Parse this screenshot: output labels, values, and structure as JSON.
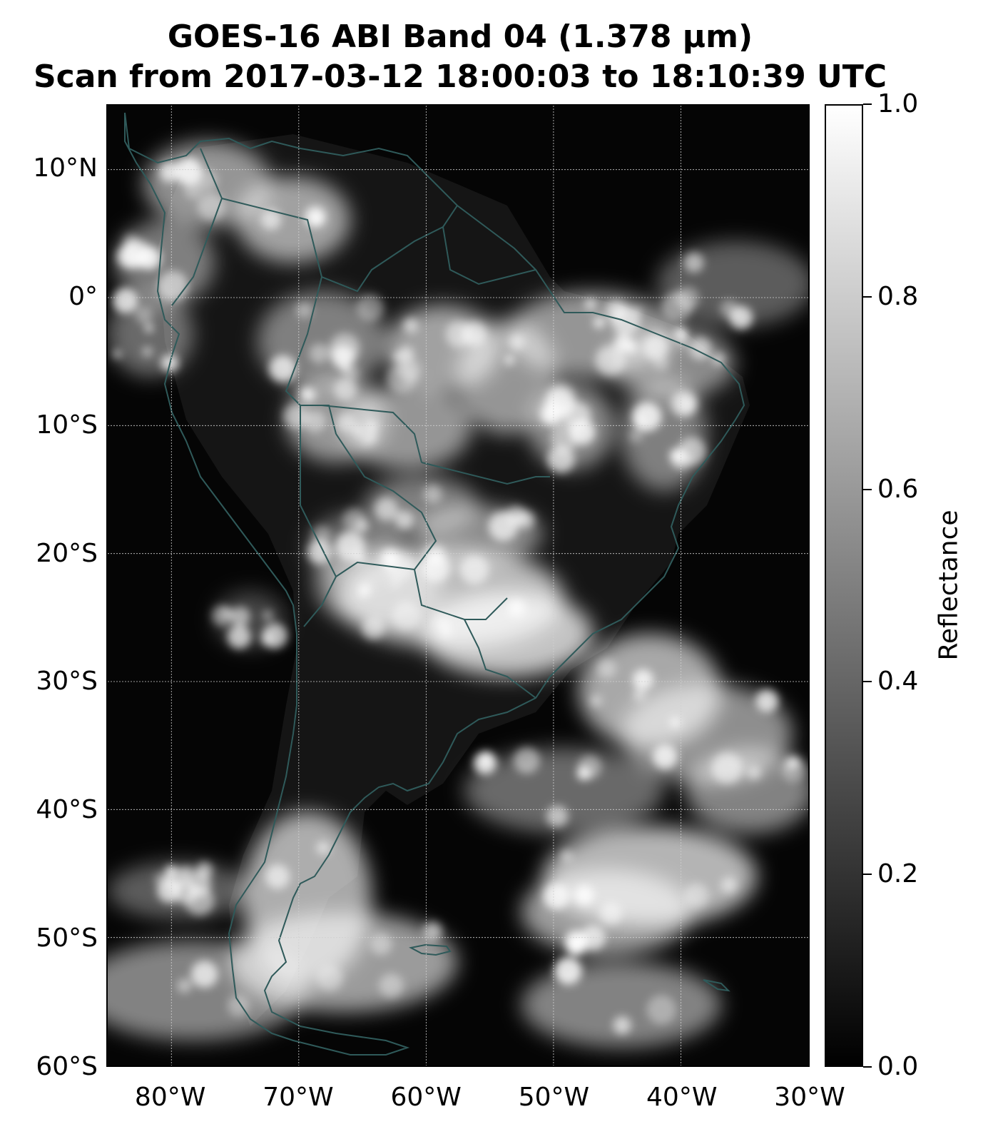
{
  "title": {
    "line1": "GOES-16 ABI Band 04 (1.378 µm)",
    "line2": "Scan from 2017-03-12 18:00:03 to 18:10:39 UTC"
  },
  "map": {
    "lon_range": [
      -85,
      -30
    ],
    "lat_range": [
      -60,
      15
    ],
    "coastline_color": "#2f5a5a",
    "gridline_color": "#d0d0d0",
    "lat_labels": [
      {
        "lat": 10,
        "text": "10°N"
      },
      {
        "lat": 0,
        "text": "0°"
      },
      {
        "lat": -10,
        "text": "10°S"
      },
      {
        "lat": -20,
        "text": "20°S"
      },
      {
        "lat": -30,
        "text": "30°S"
      },
      {
        "lat": -40,
        "text": "40°S"
      },
      {
        "lat": -50,
        "text": "50°S"
      },
      {
        "lat": -60,
        "text": "60°S"
      }
    ],
    "lon_labels": [
      {
        "lon": -80,
        "text": "80°W"
      },
      {
        "lon": -70,
        "text": "70°W"
      },
      {
        "lon": -60,
        "text": "60°W"
      },
      {
        "lon": -50,
        "text": "50°W"
      },
      {
        "lon": -40,
        "text": "40°W"
      },
      {
        "lon": -30,
        "text": "30°W"
      }
    ]
  },
  "colorbar": {
    "label": "Reflectance",
    "range": [
      0,
      1
    ],
    "colormap": [
      "#000000",
      "#ffffff"
    ],
    "ticks": [
      {
        "value": 1.0,
        "text": "1.0"
      },
      {
        "value": 0.8,
        "text": "0.8"
      },
      {
        "value": 0.6,
        "text": "0.6"
      },
      {
        "value": 0.4,
        "text": "0.4"
      },
      {
        "value": 0.2,
        "text": "0.2"
      },
      {
        "value": 0.0,
        "text": "0.0"
      }
    ]
  }
}
